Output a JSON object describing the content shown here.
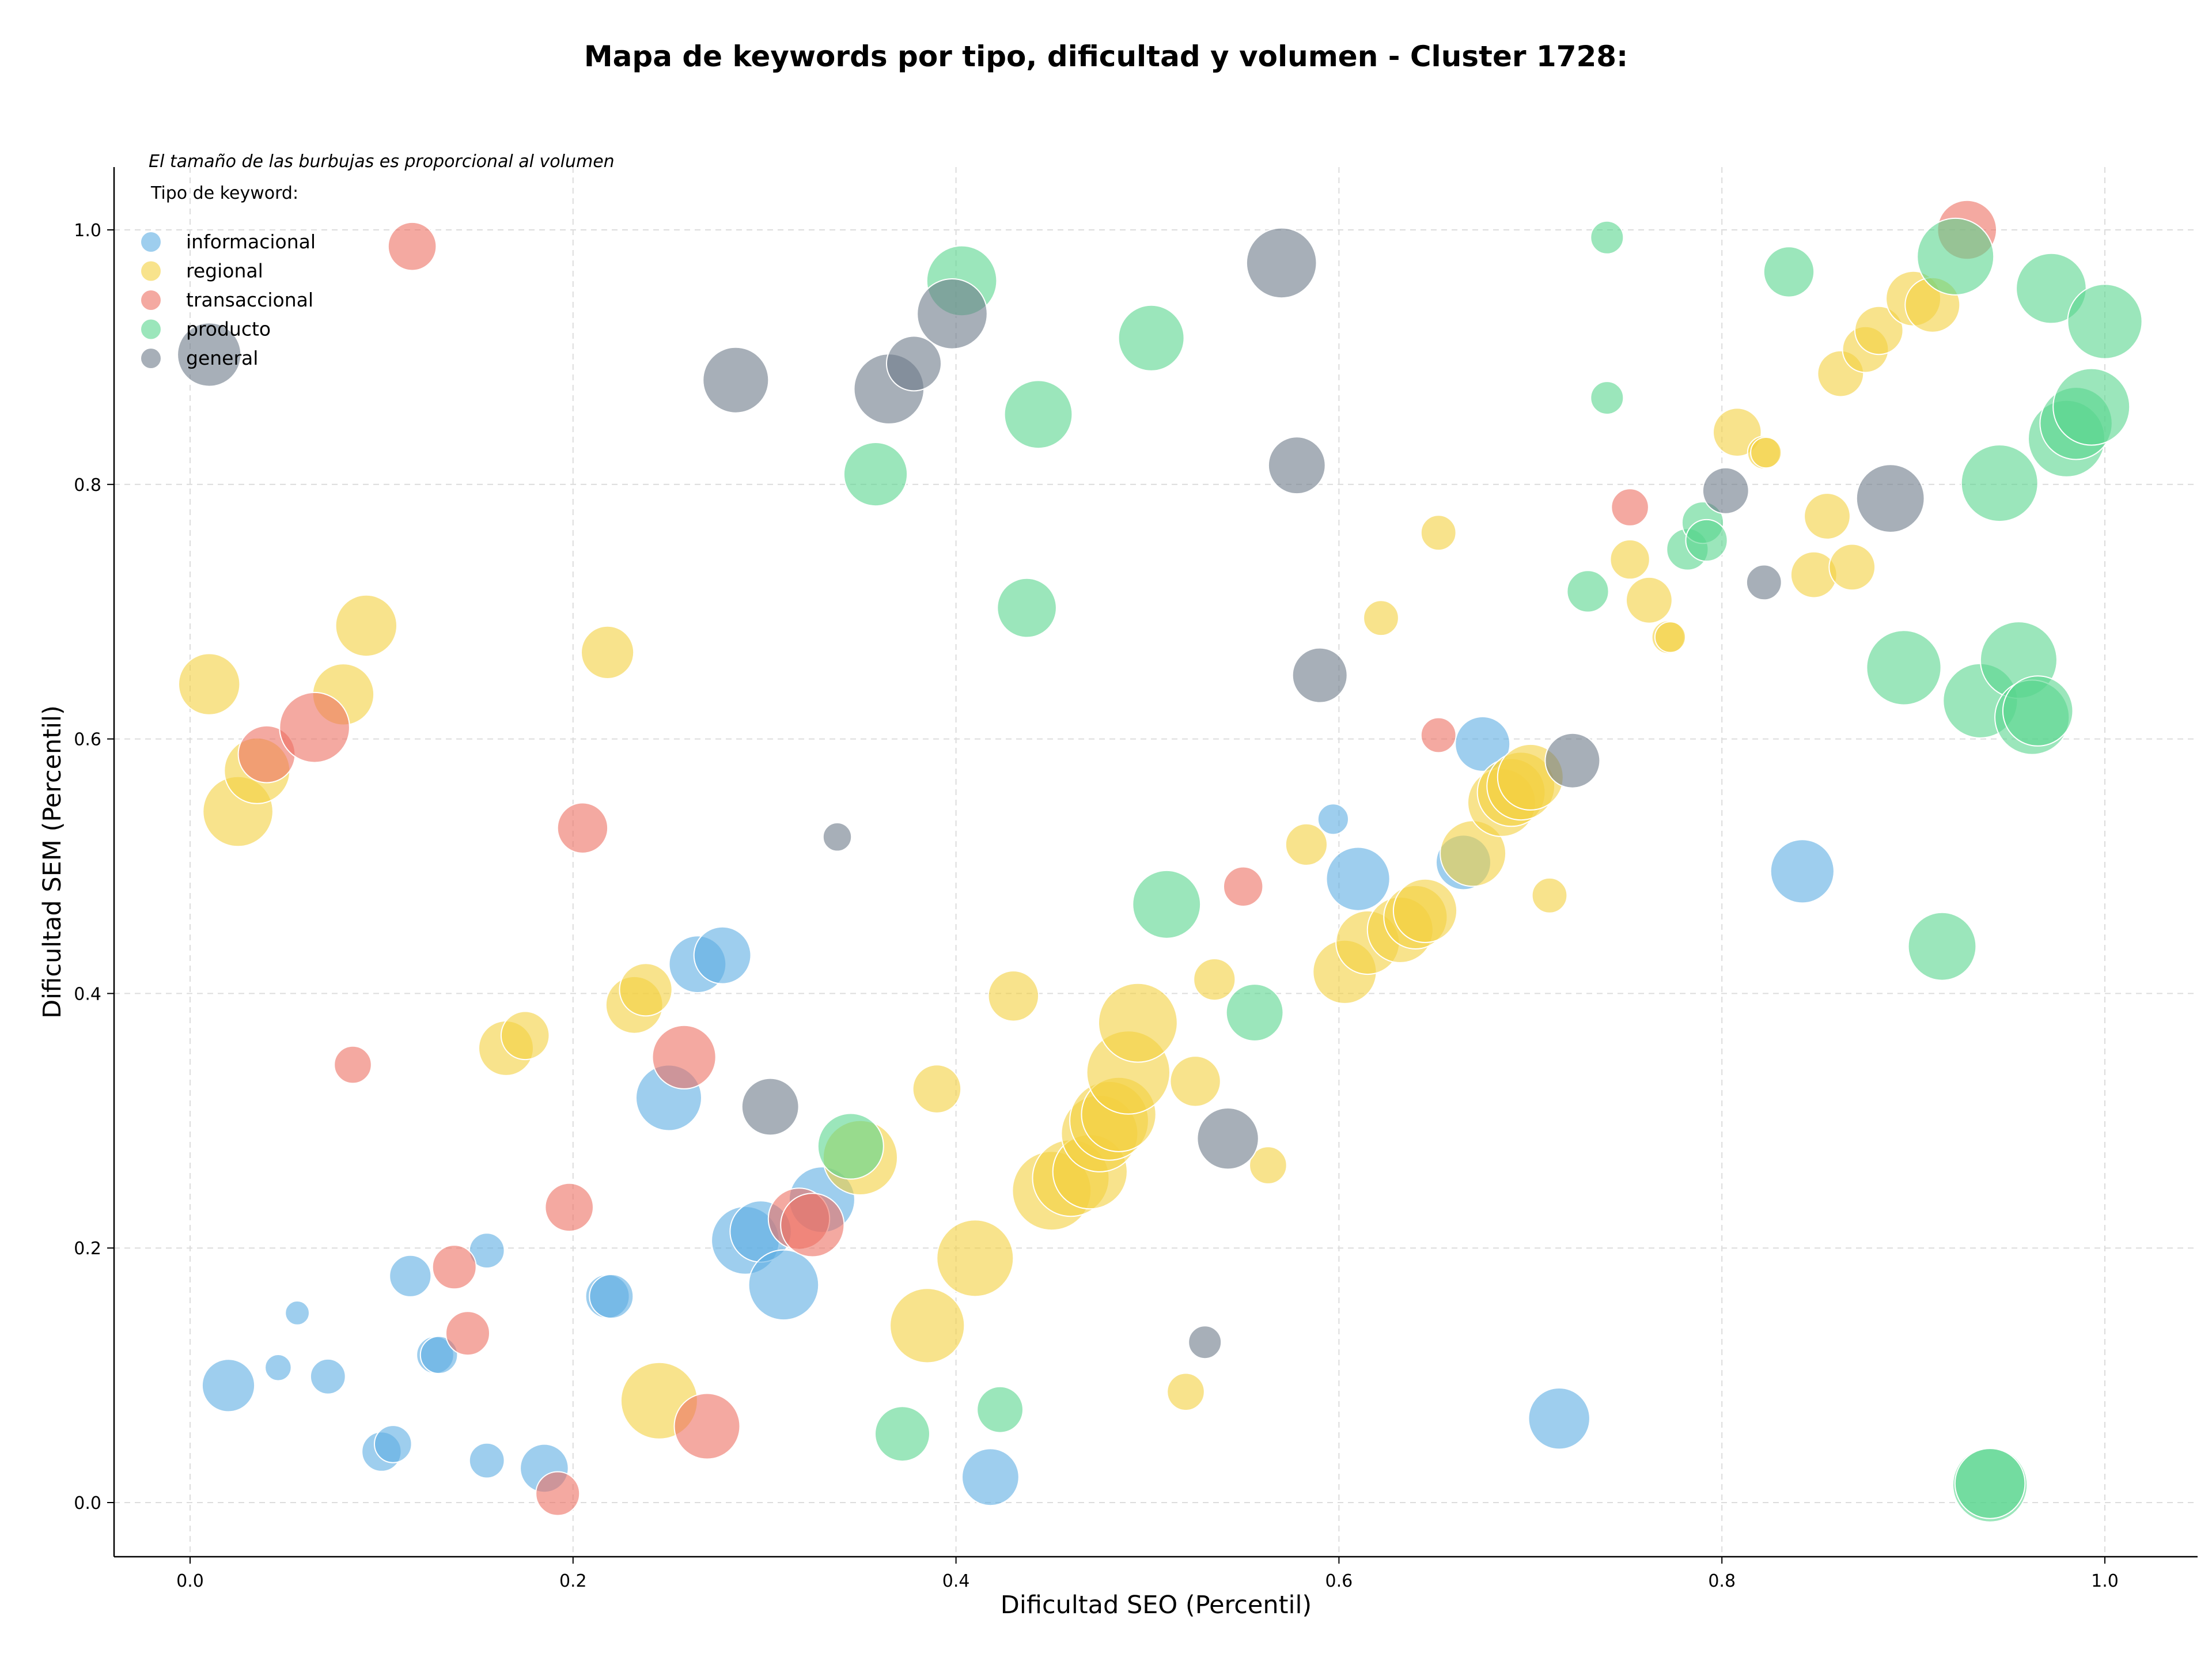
{
  "chart_data": {
    "type": "scatter",
    "title": "Mapa de keywords por tipo, dificultad y volumen - Cluster 1728:",
    "subtitle": "El tamaño de las burbujas es proporcional al volumen",
    "xlabel": "Dificultad SEO (Percentil)",
    "ylabel": "Dificultad SEM (Percentil)",
    "xlim": [
      -0.04,
      1.05
    ],
    "ylim": [
      -0.04,
      1.05
    ],
    "xticks": [
      "0.0",
      "0.2",
      "0.4",
      "0.6",
      "0.8",
      "1.0"
    ],
    "yticks": [
      "0.0",
      "0.2",
      "0.4",
      "0.6",
      "0.8",
      "1.0"
    ],
    "grid": true,
    "legend": {
      "title": "Tipo de keyword:",
      "placement": "top-left"
    },
    "series": [
      {
        "name": "informacional",
        "color": "#5DADE2",
        "points": [
          [
            0.02,
            0.092,
            1.2
          ],
          [
            0.046,
            0.106,
            0.6
          ],
          [
            0.056,
            0.149,
            0.55
          ],
          [
            0.072,
            0.099,
            0.8
          ],
          [
            0.1,
            0.04,
            0.9
          ],
          [
            0.106,
            0.046,
            0.85
          ],
          [
            0.115,
            0.178,
            0.95
          ],
          [
            0.128,
            0.116,
            0.85
          ],
          [
            0.13,
            0.116,
            0.85
          ],
          [
            0.155,
            0.198,
            0.8
          ],
          [
            0.155,
            0.033,
            0.8
          ],
          [
            0.185,
            0.027,
            1.1
          ],
          [
            0.218,
            0.162,
            1.0
          ],
          [
            0.22,
            0.162,
            1.0
          ],
          [
            0.25,
            0.318,
            1.5
          ],
          [
            0.265,
            0.423,
            1.3
          ],
          [
            0.278,
            0.43,
            1.3
          ],
          [
            0.29,
            0.206,
            1.55
          ],
          [
            0.298,
            0.213,
            1.4
          ],
          [
            0.31,
            0.171,
            1.6
          ],
          [
            0.33,
            0.238,
            1.5
          ],
          [
            0.418,
            0.02,
            1.3
          ],
          [
            0.597,
            0.537,
            0.7
          ],
          [
            0.61,
            0.49,
            1.45
          ],
          [
            0.665,
            0.503,
            1.25
          ],
          [
            0.675,
            0.596,
            1.25
          ],
          [
            0.715,
            0.066,
            1.4
          ],
          [
            0.842,
            0.496,
            1.45
          ]
        ]
      },
      {
        "name": "regional",
        "color": "#F4D03F",
        "points": [
          [
            0.01,
            0.643,
            1.4
          ],
          [
            0.025,
            0.543,
            1.6
          ],
          [
            0.035,
            0.575,
            1.5
          ],
          [
            0.08,
            0.635,
            1.4
          ],
          [
            0.092,
            0.689,
            1.4
          ],
          [
            0.165,
            0.357,
            1.25
          ],
          [
            0.175,
            0.367,
            1.1
          ],
          [
            0.218,
            0.668,
            1.2
          ],
          [
            0.232,
            0.391,
            1.3
          ],
          [
            0.238,
            0.403,
            1.2
          ],
          [
            0.245,
            0.08,
            1.75
          ],
          [
            0.35,
            0.271,
            1.7
          ],
          [
            0.385,
            0.139,
            1.7
          ],
          [
            0.39,
            0.325,
            1.1
          ],
          [
            0.41,
            0.192,
            1.75
          ],
          [
            0.43,
            0.398,
            1.15
          ],
          [
            0.45,
            0.245,
            1.8
          ],
          [
            0.46,
            0.255,
            1.75
          ],
          [
            0.47,
            0.26,
            1.7
          ],
          [
            0.475,
            0.29,
            1.75
          ],
          [
            0.48,
            0.3,
            1.8
          ],
          [
            0.485,
            0.305,
            1.7
          ],
          [
            0.49,
            0.338,
            1.9
          ],
          [
            0.495,
            0.377,
            1.8
          ],
          [
            0.52,
            0.087,
            0.85
          ],
          [
            0.525,
            0.331,
            1.15
          ],
          [
            0.535,
            0.411,
            0.95
          ],
          [
            0.563,
            0.265,
            0.85
          ],
          [
            0.583,
            0.517,
            0.95
          ],
          [
            0.603,
            0.417,
            1.45
          ],
          [
            0.615,
            0.44,
            1.45
          ],
          [
            0.622,
            0.695,
            0.8
          ],
          [
            0.632,
            0.45,
            1.5
          ],
          [
            0.64,
            0.46,
            1.45
          ],
          [
            0.645,
            0.465,
            1.45
          ],
          [
            0.652,
            0.762,
            0.8
          ],
          [
            0.67,
            0.51,
            1.5
          ],
          [
            0.685,
            0.55,
            1.55
          ],
          [
            0.69,
            0.558,
            1.55
          ],
          [
            0.695,
            0.563,
            1.55
          ],
          [
            0.7,
            0.57,
            1.5
          ],
          [
            0.71,
            0.477,
            0.8
          ],
          [
            0.752,
            0.741,
            0.9
          ],
          [
            0.762,
            0.709,
            1.05
          ],
          [
            0.772,
            0.68,
            0.75
          ],
          [
            0.773,
            0.68,
            0.7
          ],
          [
            0.808,
            0.841,
            1.1
          ],
          [
            0.822,
            0.825,
            0.75
          ],
          [
            0.823,
            0.825,
            0.7
          ],
          [
            0.848,
            0.729,
            1.05
          ],
          [
            0.855,
            0.775,
            1.05
          ],
          [
            0.862,
            0.887,
            1.05
          ],
          [
            0.868,
            0.735,
            1.05
          ],
          [
            0.875,
            0.906,
            1.05
          ],
          [
            0.882,
            0.921,
            1.1
          ],
          [
            0.9,
            0.946,
            1.25
          ],
          [
            0.91,
            0.941,
            1.25
          ]
        ]
      },
      {
        "name": "transaccional",
        "color": "#EC7063",
        "points": [
          [
            0.04,
            0.588,
            1.3
          ],
          [
            0.065,
            0.609,
            1.6
          ],
          [
            0.085,
            0.344,
            0.85
          ],
          [
            0.116,
            0.987,
            1.1
          ],
          [
            0.138,
            0.185,
            1.0
          ],
          [
            0.145,
            0.133,
            1.0
          ],
          [
            0.192,
            0.007,
            1.0
          ],
          [
            0.198,
            0.232,
            1.1
          ],
          [
            0.205,
            0.53,
            1.15
          ],
          [
            0.258,
            0.35,
            1.45
          ],
          [
            0.27,
            0.06,
            1.5
          ],
          [
            0.318,
            0.223,
            1.4
          ],
          [
            0.325,
            0.218,
            1.45
          ],
          [
            0.55,
            0.484,
            0.9
          ],
          [
            0.652,
            0.603,
            0.8
          ],
          [
            0.752,
            0.782,
            0.85
          ],
          [
            0.928,
            1.0,
            1.35
          ]
        ]
      },
      {
        "name": "producto",
        "color": "#58D68D",
        "points": [
          [
            0.345,
            0.28,
            1.5
          ],
          [
            0.358,
            0.808,
            1.45
          ],
          [
            0.372,
            0.054,
            1.25
          ],
          [
            0.403,
            0.96,
            1.6
          ],
          [
            0.423,
            0.073,
            1.05
          ],
          [
            0.437,
            0.703,
            1.35
          ],
          [
            0.443,
            0.855,
            1.55
          ],
          [
            0.502,
            0.915,
            1.5
          ],
          [
            0.51,
            0.47,
            1.55
          ],
          [
            0.556,
            0.385,
            1.3
          ],
          [
            0.73,
            0.716,
            0.95
          ],
          [
            0.74,
            0.994,
            0.75
          ],
          [
            0.74,
            0.868,
            0.75
          ],
          [
            0.782,
            0.749,
            0.95
          ],
          [
            0.79,
            0.77,
            0.95
          ],
          [
            0.792,
            0.756,
            0.95
          ],
          [
            0.835,
            0.967,
            1.15
          ],
          [
            0.895,
            0.656,
            1.7
          ],
          [
            0.915,
            0.437,
            1.55
          ],
          [
            0.935,
            0.63,
            1.7
          ],
          [
            0.94,
            0.014,
            1.7
          ],
          [
            0.94,
            0.015,
            1.6
          ],
          [
            0.922,
            0.979,
            1.75
          ],
          [
            0.945,
            0.801,
            1.75
          ],
          [
            0.955,
            0.662,
            1.75
          ],
          [
            0.962,
            0.617,
            1.7
          ],
          [
            0.965,
            0.622,
            1.6
          ],
          [
            0.972,
            0.954,
            1.6
          ],
          [
            0.98,
            0.836,
            1.75
          ],
          [
            0.985,
            0.848,
            1.65
          ],
          [
            0.993,
            0.861,
            1.75
          ],
          [
            1.0,
            0.928,
            1.7
          ]
        ]
      },
      {
        "name": "general",
        "color": "#6C7A89",
        "points": [
          [
            0.01,
            0.902,
            1.45
          ],
          [
            0.285,
            0.882,
            1.5
          ],
          [
            0.303,
            0.311,
            1.3
          ],
          [
            0.338,
            0.523,
            0.65
          ],
          [
            0.365,
            0.875,
            1.6
          ],
          [
            0.378,
            0.895,
            1.25
          ],
          [
            0.398,
            0.934,
            1.6
          ],
          [
            0.53,
            0.126,
            0.75
          ],
          [
            0.542,
            0.286,
            1.4
          ],
          [
            0.57,
            0.974,
            1.6
          ],
          [
            0.578,
            0.815,
            1.3
          ],
          [
            0.59,
            0.65,
            1.25
          ],
          [
            0.722,
            0.583,
            1.25
          ],
          [
            0.802,
            0.795,
            1.05
          ],
          [
            0.822,
            0.723,
            0.8
          ],
          [
            0.888,
            0.789,
            1.55
          ]
        ]
      }
    ]
  }
}
